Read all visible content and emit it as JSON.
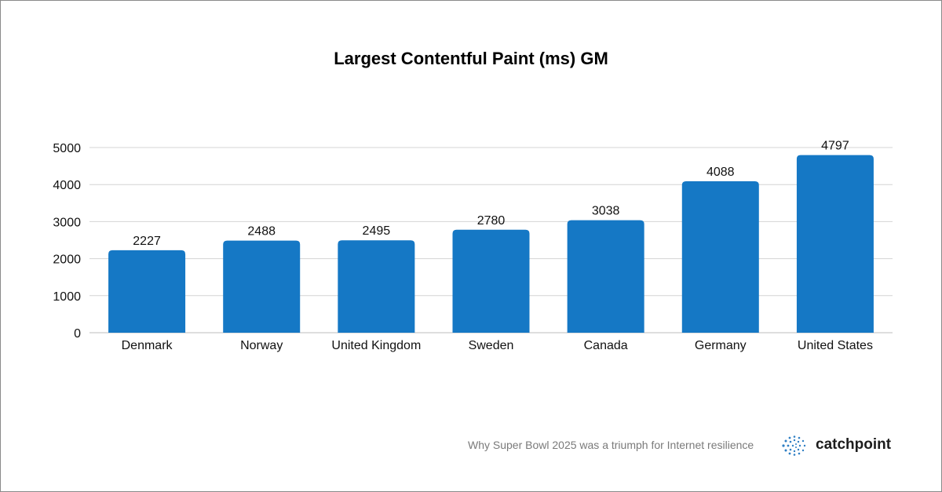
{
  "chart_data": {
    "type": "bar",
    "title": "Largest Contentful Paint (ms) GM",
    "xlabel": "",
    "ylabel": "",
    "categories": [
      "Denmark",
      "Norway",
      "United Kingdom",
      "Sweden",
      "Canada",
      "Germany",
      "United States"
    ],
    "values": [
      2227,
      2488,
      2495,
      2780,
      3038,
      4088,
      4797
    ],
    "ylim": [
      0,
      5000
    ],
    "yticks": [
      0,
      1000,
      2000,
      3000,
      4000,
      5000
    ],
    "grid": true,
    "bar_color": "#1578C5",
    "data_labels": true
  },
  "footer": {
    "caption": "Why Super Bowl 2025 was a triumph for Internet resilience",
    "brand": "catchpoint"
  }
}
